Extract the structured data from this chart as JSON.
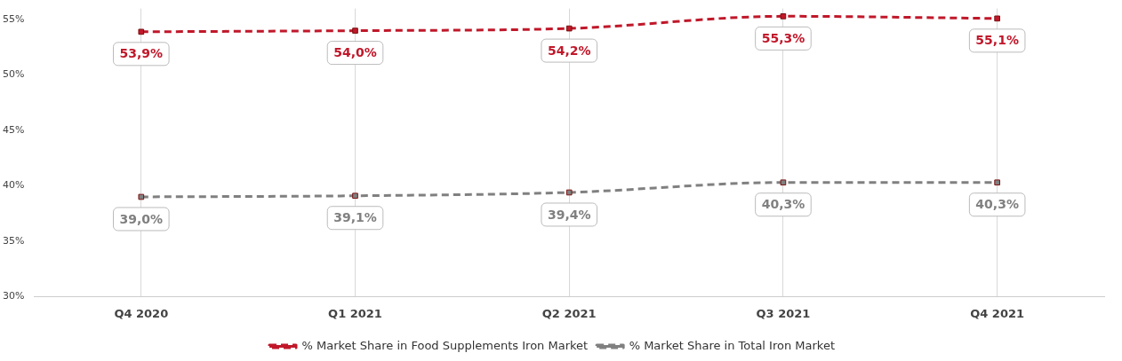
{
  "chart_data": {
    "type": "line",
    "categories": [
      "Q4 2020",
      "Q1 2021",
      "Q2 2021",
      "Q3 2021",
      "Q4 2021"
    ],
    "series": [
      {
        "name": "% Market Share in Food Supplements Iron Market",
        "color": "#c0182a",
        "values": [
          53.9,
          54.0,
          54.2,
          55.3,
          55.1
        ],
        "value_labels": [
          "53,9%",
          "54,0%",
          "54,2%",
          "55,3%",
          "55,1%"
        ]
      },
      {
        "name": "% Market Share in Total Iron Market",
        "color": "#808080",
        "values": [
          39.0,
          39.1,
          39.4,
          40.3,
          40.3
        ],
        "value_labels": [
          "39,0%",
          "39,1%",
          "39,4%",
          "40,3%",
          "40,3%"
        ]
      }
    ],
    "ylim": [
      30,
      56
    ],
    "yticks": [
      {
        "value": 30,
        "label": "30%"
      },
      {
        "value": 35,
        "label": "35%"
      },
      {
        "value": 40,
        "label": "40%"
      },
      {
        "value": 45,
        "label": "45%"
      },
      {
        "value": 50,
        "label": "50%"
      },
      {
        "value": 55,
        "label": "55%"
      }
    ],
    "grid": "x",
    "legend": "bottom",
    "marker": "square",
    "line_style": "dashed"
  }
}
